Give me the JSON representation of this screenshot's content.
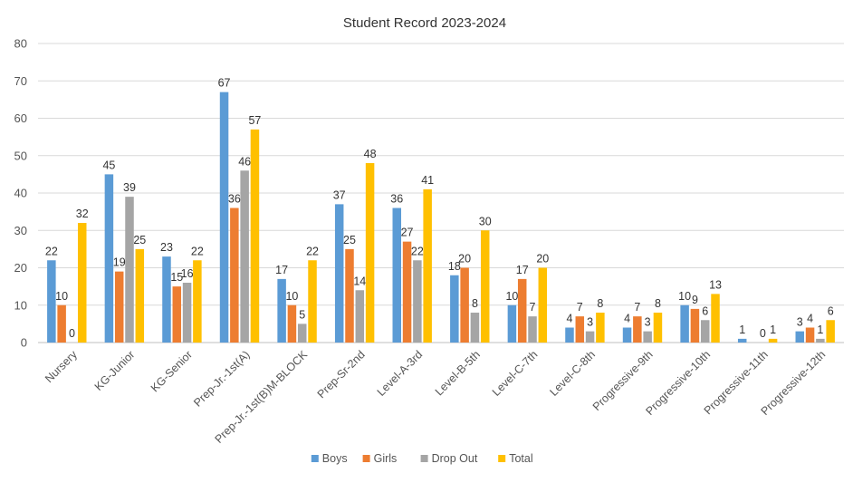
{
  "chart_data": {
    "type": "bar",
    "title": "Student Record 2023-2024",
    "xlabel": "",
    "ylabel": "",
    "ylim": [
      0,
      80
    ],
    "yticks": [
      0,
      10,
      20,
      30,
      40,
      50,
      60,
      70,
      80
    ],
    "grid": true,
    "legend_position": "bottom",
    "categories": [
      "Nursery",
      "KG-Junior",
      "KG-Senior",
      "Prep-Jr.-1st(A)",
      "Prep-Jr.-1st(B)M-BLOCK",
      "Prep-Sr-2nd",
      "Level-A-3rd",
      "Level-B-5th",
      "Level-C-7th",
      "Level-C-8th",
      "Progressive-9th",
      "Progressive-10th",
      "Progressive-11th",
      "Progressive-12th"
    ],
    "series": [
      {
        "name": "Boys",
        "color": "#5B9BD5",
        "values": [
          22,
          45,
          23,
          67,
          17,
          37,
          36,
          18,
          10,
          4,
          4,
          10,
          1,
          3
        ]
      },
      {
        "name": "Girls",
        "color": "#ED7D31",
        "values": [
          10,
          19,
          15,
          36,
          10,
          25,
          27,
          20,
          17,
          7,
          7,
          9,
          null,
          4
        ]
      },
      {
        "name": "Drop Out",
        "color": "#A5A5A5",
        "values": [
          0,
          39,
          16,
          46,
          5,
          14,
          22,
          8,
          7,
          3,
          3,
          6,
          0,
          1
        ]
      },
      {
        "name": "Total",
        "color": "#FFC000",
        "values": [
          32,
          25,
          22,
          57,
          22,
          48,
          41,
          30,
          20,
          8,
          8,
          13,
          1,
          6
        ]
      }
    ]
  }
}
